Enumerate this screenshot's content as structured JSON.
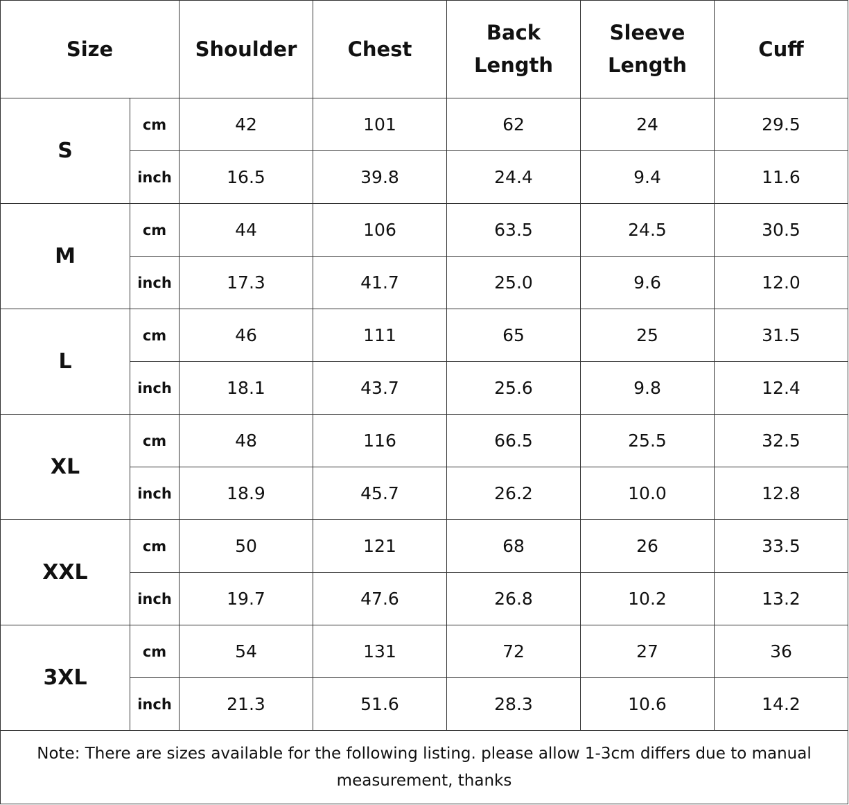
{
  "table": {
    "headers": [
      "Size",
      "Shoulder",
      "Chest",
      "Back Length",
      "Sleeve Length",
      "Cuff"
    ],
    "rows": [
      {
        "size": "S",
        "lines": [
          [
            "cm",
            "42",
            "101",
            "62",
            "24",
            "29.5"
          ],
          [
            "inch",
            "16.5",
            "39.8",
            "24.4",
            "9.4",
            "11.6"
          ]
        ]
      },
      {
        "size": "M",
        "lines": [
          [
            "cm",
            "44",
            "106",
            "63.5",
            "24.5",
            "30.5"
          ],
          [
            "inch",
            "17.3",
            "41.7",
            "25.0",
            "9.6",
            "12.0"
          ]
        ]
      },
      {
        "size": "L",
        "lines": [
          [
            "cm",
            "46",
            "111",
            "65",
            "25",
            "31.5"
          ],
          [
            "inch",
            "18.1",
            "43.7",
            "25.6",
            "9.8",
            "12.4"
          ]
        ]
      },
      {
        "size": "XL",
        "lines": [
          [
            "cm",
            "48",
            "116",
            "66.5",
            "25.5",
            "32.5"
          ],
          [
            "inch",
            "18.9",
            "45.7",
            "26.2",
            "10.0",
            "12.8"
          ]
        ]
      },
      {
        "size": "XXL",
        "lines": [
          [
            "cm",
            "50",
            "121",
            "68",
            "26",
            "33.5"
          ],
          [
            "inch",
            "19.7",
            "47.6",
            "26.8",
            "10.2",
            "13.2"
          ]
        ]
      },
      {
        "size": "3XL",
        "lines": [
          [
            "cm",
            "54",
            "131",
            "72",
            "27",
            "36"
          ],
          [
            "inch",
            "21.3",
            "51.6",
            "28.3",
            "10.6",
            "14.2"
          ]
        ]
      }
    ],
    "note": "Note: There are sizes available for the following listing. please allow 1-3cm differs due to manual measurement, thanks"
  }
}
